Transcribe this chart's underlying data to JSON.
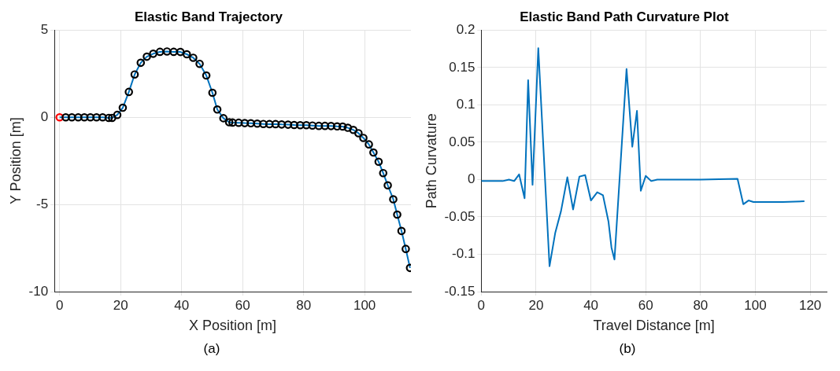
{
  "chart_data": [
    {
      "type": "line",
      "title": "Elastic Band Trajectory",
      "xlabel": "X Position [m]",
      "ylabel": "Y Position [m]",
      "annotations": [
        "(a)"
      ],
      "xlim": [
        -1.7,
        115.2
      ],
      "xticks": [
        0,
        20,
        40,
        60,
        80,
        100
      ],
      "ylim": [
        -10,
        5
      ],
      "yticks": [
        -10,
        -5,
        0,
        5
      ],
      "grid": true,
      "series": [
        {
          "type": "line",
          "color": "#0072bd",
          "marker": "none",
          "x": [
            0,
            2.0,
            4.0,
            6.1,
            8.1,
            10.1,
            12.1,
            14.1,
            16.1,
            17.2,
            18.9,
            20.7,
            22.7,
            24.6,
            26.6,
            28.6,
            30.7,
            32.9,
            35.2,
            37.4,
            39.6,
            41.7,
            43.8,
            45.9,
            48.1,
            50.1,
            51.7,
            53.7,
            55.6,
            56.7,
            58.7,
            60.7,
            62.7,
            64.8,
            66.8,
            68.8,
            70.8,
            72.8,
            74.9,
            76.9,
            78.9,
            80.9,
            82.9,
            85.0,
            87.0,
            89.0,
            91.0,
            92.8,
            94.5,
            96.3,
            98.0,
            99.6,
            101.4,
            102.9,
            104.6,
            106.1,
            107.6,
            109.4,
            110.7,
            112.1,
            113.5,
            114.9
          ],
          "values": [
            0,
            0,
            0,
            0,
            0,
            0,
            0,
            0,
            -0.03,
            -0.03,
            0.14,
            0.55,
            1.46,
            2.46,
            3.13,
            3.48,
            3.65,
            3.76,
            3.78,
            3.76,
            3.75,
            3.62,
            3.42,
            3.07,
            2.4,
            1.41,
            0.45,
            -0.05,
            -0.28,
            -0.3,
            -0.31,
            -0.33,
            -0.34,
            -0.36,
            -0.38,
            -0.39,
            -0.39,
            -0.41,
            -0.42,
            -0.44,
            -0.45,
            -0.45,
            -0.47,
            -0.49,
            -0.49,
            -0.5,
            -0.52,
            -0.53,
            -0.6,
            -0.72,
            -0.91,
            -1.18,
            -1.55,
            -2.02,
            -2.55,
            -3.2,
            -3.9,
            -4.7,
            -5.58,
            -6.52,
            -7.55,
            -8.64
          ]
        },
        {
          "type": "scatter",
          "color": "#000000",
          "marker": "circle",
          "x": [
            2.0,
            4.0,
            6.1,
            8.1,
            10.1,
            12.1,
            14.1,
            16.1,
            17.2,
            18.9,
            20.7,
            22.7,
            24.6,
            26.6,
            28.6,
            30.7,
            32.9,
            35.2,
            37.4,
            39.6,
            41.7,
            43.8,
            45.9,
            48.1,
            50.1,
            51.7,
            53.7,
            55.6,
            56.7,
            58.7,
            60.7,
            62.7,
            64.8,
            66.8,
            68.8,
            70.8,
            72.8,
            74.9,
            76.9,
            78.9,
            80.9,
            82.9,
            85.0,
            87.0,
            89.0,
            91.0,
            92.8,
            94.5,
            96.3,
            98.0,
            99.6,
            101.4,
            102.9,
            104.6,
            106.1,
            107.6,
            109.4,
            110.7,
            112.1,
            113.5,
            114.9
          ],
          "values": [
            0,
            0,
            0,
            0,
            0,
            0,
            0,
            -0.03,
            -0.03,
            0.14,
            0.55,
            1.46,
            2.46,
            3.13,
            3.48,
            3.65,
            3.76,
            3.78,
            3.76,
            3.75,
            3.62,
            3.42,
            3.07,
            2.4,
            1.41,
            0.45,
            -0.05,
            -0.28,
            -0.3,
            -0.31,
            -0.33,
            -0.34,
            -0.36,
            -0.38,
            -0.39,
            -0.39,
            -0.41,
            -0.42,
            -0.44,
            -0.45,
            -0.45,
            -0.47,
            -0.49,
            -0.49,
            -0.5,
            -0.52,
            -0.53,
            -0.6,
            -0.72,
            -0.91,
            -1.18,
            -1.55,
            -2.02,
            -2.55,
            -3.2,
            -3.9,
            -4.7,
            -5.58,
            -6.52,
            -7.55,
            -8.64
          ]
        },
        {
          "type": "scatter",
          "color": "#ff0000",
          "marker": "circle",
          "x": [
            0
          ],
          "values": [
            0
          ]
        }
      ]
    },
    {
      "type": "line",
      "title": "Elastic Band Path Curvature Plot",
      "xlabel": "Travel Distance [m]",
      "ylabel": "Path Curvature",
      "annotations": [
        "(b)"
      ],
      "xlim": [
        0,
        126
      ],
      "xticks": [
        0,
        20,
        40,
        60,
        80,
        100,
        120
      ],
      "ylim": [
        -0.15,
        0.2
      ],
      "yticks": [
        -0.15,
        -0.1,
        -0.05,
        0,
        0.05,
        0.1,
        0.15,
        0.2
      ],
      "grid": true,
      "series": [
        {
          "color": "#0072bd",
          "x": [
            0,
            7.8,
            10.1,
            12.0,
            13.8,
            15.8,
            17.1,
            18.7,
            20.8,
            24.9,
            27.0,
            29.1,
            31.4,
            33.5,
            35.8,
            37.9,
            40.0,
            42.3,
            44.4,
            46.4,
            47.5,
            48.6,
            53.0,
            55.1,
            56.8,
            58.2,
            60.0,
            62.0,
            64.2,
            68.6,
            80,
            93.5,
            95.6,
            97.5,
            99.3,
            110,
            117.9
          ],
          "values": [
            -0.002,
            -0.002,
            0,
            -0.002,
            0.007,
            -0.025,
            0.133,
            -0.007,
            0.176,
            -0.116,
            -0.071,
            -0.042,
            0.003,
            -0.04,
            0.004,
            0.006,
            -0.028,
            -0.017,
            -0.021,
            -0.056,
            -0.091,
            -0.107,
            0.148,
            0.044,
            0.092,
            -0.015,
            0.005,
            -0.002,
            0,
            0,
            0,
            0.001,
            -0.033,
            -0.028,
            -0.03,
            -0.03,
            -0.029
          ]
        }
      ]
    }
  ]
}
